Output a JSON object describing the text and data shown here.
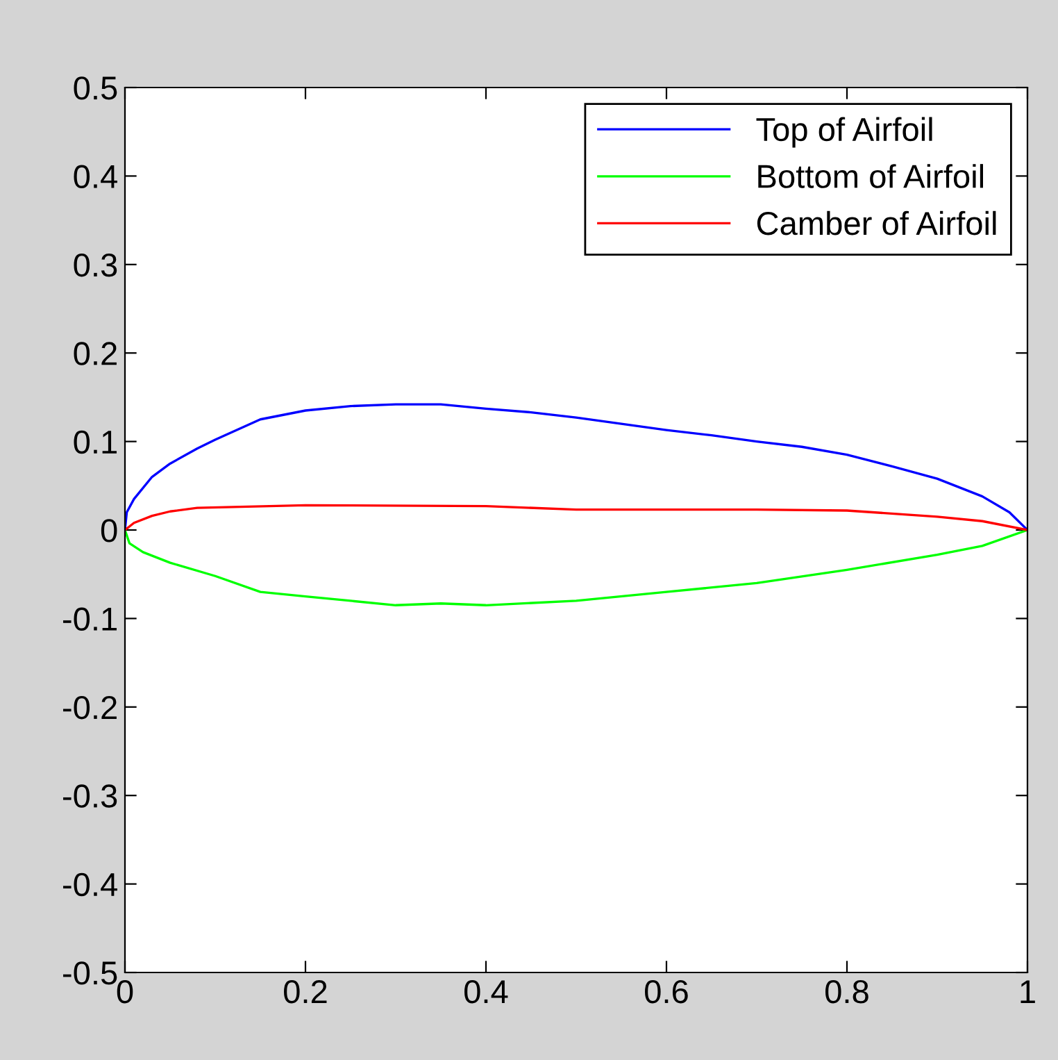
{
  "chart_data": {
    "type": "line",
    "series": [
      {
        "name": "Top of Airfoil",
        "color": "#0000ff",
        "x": [
          0,
          0.002,
          0.01,
          0.03,
          0.05,
          0.08,
          0.1,
          0.15,
          0.2,
          0.25,
          0.3,
          0.35,
          0.4,
          0.45,
          0.5,
          0.55,
          0.6,
          0.65,
          0.7,
          0.75,
          0.8,
          0.85,
          0.9,
          0.95,
          0.98,
          1
        ],
        "values": [
          0,
          0.02,
          0.035,
          0.06,
          0.075,
          0.092,
          0.102,
          0.125,
          0.135,
          0.14,
          0.142,
          0.142,
          0.137,
          0.133,
          0.127,
          0.12,
          0.113,
          0.107,
          0.1,
          0.094,
          0.085,
          0.072,
          0.058,
          0.038,
          0.02,
          0
        ]
      },
      {
        "name": "Bottom of Airfoil",
        "color": "#00ff00",
        "x": [
          0,
          0.005,
          0.02,
          0.05,
          0.1,
          0.15,
          0.2,
          0.25,
          0.3,
          0.35,
          0.4,
          0.5,
          0.6,
          0.7,
          0.8,
          0.9,
          0.95,
          1
        ],
        "values": [
          0,
          -0.015,
          -0.025,
          -0.037,
          -0.052,
          -0.07,
          -0.075,
          -0.08,
          -0.085,
          -0.083,
          -0.085,
          -0.08,
          -0.07,
          -0.06,
          -0.045,
          -0.028,
          -0.018,
          0
        ]
      },
      {
        "name": "Camber of Airfoil",
        "color": "#ff0000",
        "x": [
          0,
          0.01,
          0.03,
          0.05,
          0.08,
          0.2,
          0.4,
          0.5,
          0.7,
          0.8,
          0.9,
          0.95,
          1
        ],
        "values": [
          0,
          0.008,
          0.016,
          0.021,
          0.025,
          0.028,
          0.027,
          0.023,
          0.023,
          0.022,
          0.015,
          0.01,
          0
        ]
      }
    ],
    "xlim": [
      0,
      1
    ],
    "xticks": [
      0,
      0.2,
      0.4,
      0.6,
      0.8,
      1
    ],
    "ylim": [
      -0.5,
      0.5
    ],
    "yticks": [
      -0.5,
      -0.4,
      -0.3,
      -0.2,
      -0.1,
      0,
      0.1,
      0.2,
      0.3,
      0.4,
      0.5
    ],
    "legend": "top right",
    "grid": false
  }
}
